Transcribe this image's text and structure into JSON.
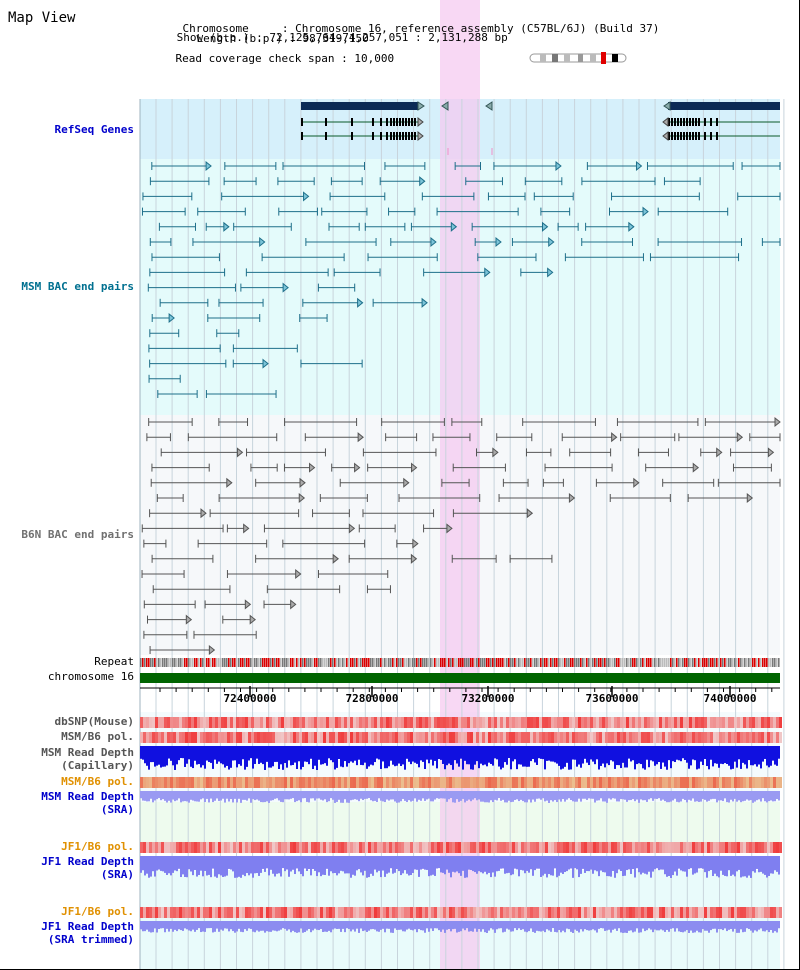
{
  "title": "Map View",
  "info": {
    "chromosome_key": "Chromosome",
    "chromosome_val": "Chromosome 16, reference assembly (C57BL/6J) (Build 37)",
    "length_key": "Length (b.p.)",
    "length_val": "98,319,150",
    "show_key": "Show (b.p.)",
    "show_val": "72,125,764-74,257,051 : 2,131,288 bp",
    "coverage_key": "Read coverage check span",
    "coverage_val": "10,000"
  },
  "tracks": {
    "refseq": "RefSeq Genes",
    "msm_bac": "MSM BAC end pairs",
    "b6n_bac": "B6N BAC end pairs",
    "repeat": "Repeat",
    "chromosome": "chromosome 16",
    "dbsnp": "dbSNP(Mouse)",
    "msm_b6_pol": "MSM/B6 pol.",
    "msm_read_depth_cap_1": "MSM Read Depth",
    "msm_read_depth_cap_2": "(Capillary)",
    "msm_b6_pol_sra": "MSM/B6 pol.",
    "msm_read_depth_sra_1": "MSM Read Depth",
    "msm_read_depth_sra_2": "(SRA)",
    "jf1_b6_pol": "JF1/B6 pol.",
    "jf1_read_depth_1": "JF1 Read Depth",
    "jf1_read_depth_2": "(SRA)",
    "jf1_b6_pol_trim": "JF1/B6 pol.",
    "jf1_read_depth_trim_1": "JF1 Read Depth",
    "jf1_read_depth_trim_2": "(SRA trimmed)"
  },
  "axis": {
    "ticks": [
      "72400000",
      "72800000",
      "73200000",
      "73600000",
      "74000000"
    ]
  },
  "colors": {
    "refseq_label": "#0000cc",
    "msm_label": "#007090",
    "b6n_label": "#707070",
    "orange_label": "#e09000",
    "blue_label": "#0000cc",
    "refseq_bg": "#d6f0fb",
    "bac_bg": "#e4fbfb",
    "grey_bg": "#f5f8fa",
    "highlight": "#f5c8ef",
    "chromosome_bar": "#006400"
  }
}
